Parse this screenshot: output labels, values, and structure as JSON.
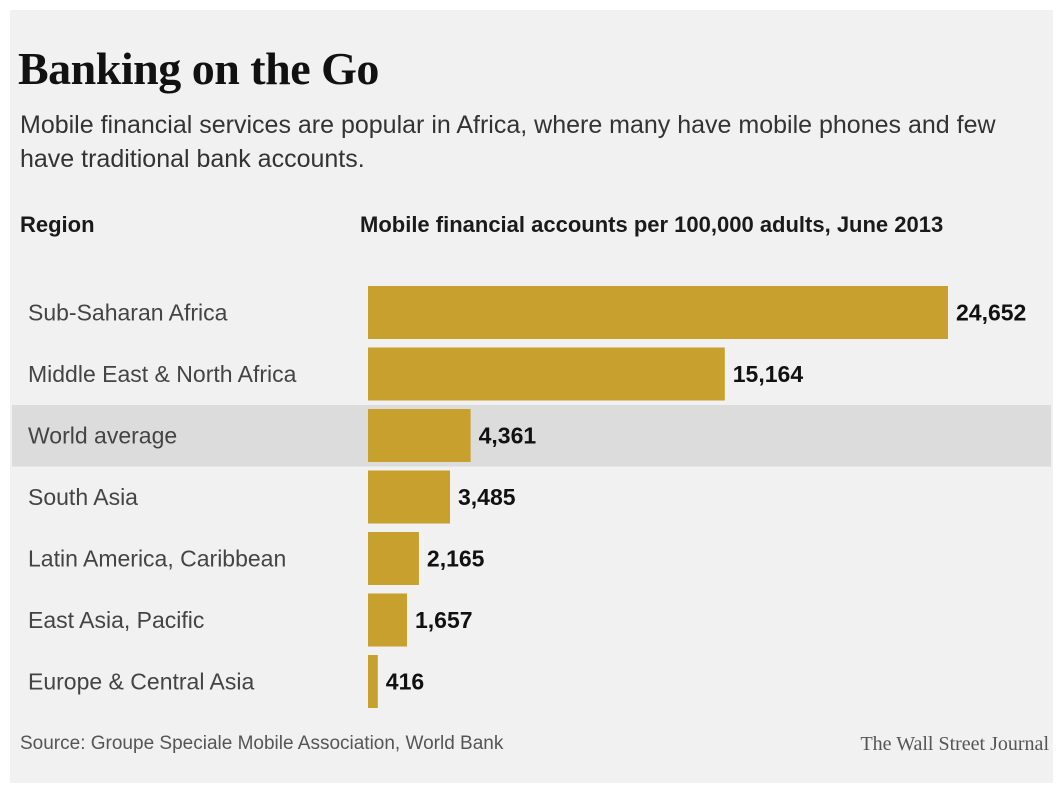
{
  "header": {
    "title": "Banking on the Go",
    "subtitle": "Mobile financial services are popular in Africa, where many have mobile phones and few have traditional bank accounts."
  },
  "columns": {
    "region": "Region",
    "measure": "Mobile financial accounts per 100,000 adults, June 2013"
  },
  "footer": {
    "source": "Source: Groupe Speciale Mobile Association, World Bank",
    "credit": "The Wall Street Journal"
  },
  "colors": {
    "bar": "#c8a02d",
    "highlight_band": "#dcdcdc",
    "panel": "#f1f1f1"
  },
  "chart_data": {
    "type": "bar",
    "orientation": "horizontal",
    "title": "Banking on the Go",
    "categories": [
      "Sub-Saharan Africa",
      "Middle East & North Africa",
      "World average",
      "South Asia",
      "Latin America, Caribbean",
      "East Asia, Pacific",
      "Europe & Central Asia"
    ],
    "values": [
      24652,
      15164,
      4361,
      3485,
      2165,
      1657,
      416
    ],
    "value_labels": [
      "24,652",
      "15,164",
      "4,361",
      "3,485",
      "2,165",
      "1,657",
      "416"
    ],
    "highlighted_category": "World average",
    "xlim": [
      0,
      24652
    ],
    "grid": false,
    "legend": "none"
  }
}
